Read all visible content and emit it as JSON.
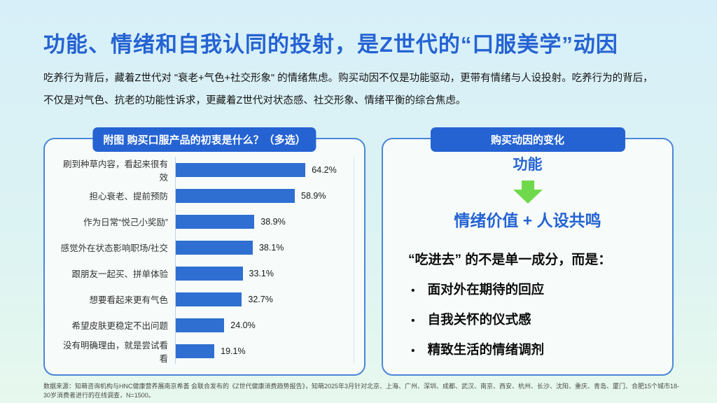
{
  "page": {
    "title": "功能、情绪和自我认同的投射，是Z世代的“口服美学”动因",
    "intro": "吃养行为背后，藏着Z世代对 \"衰老+气色+社交形象\" 的情绪焦虑。购买动因不仅是功能驱动，更带有情绪与人设投射。吃养行为的背后，不仅是对气色、抗老的功能性诉求，更藏着Z世代对状态感、社交形象、情绪平衡的综合焦虑。",
    "footnote": "数据来源：知萌咨询机构与HNC健康营养展南京希荟 会联合发布的《Z世代健康消费趋势报告》，知萌2025年3月针对北京、上海、广州、深圳、成都、武汉、南京、西安、杭州、长沙、沈阳、重庆、青岛、厦门、合肥15个城市18-30岁消费者进行的在线调查，N=1500。"
  },
  "chart_panel": {
    "header": "附图 购买口服产品的初衷是什么？（多选）"
  },
  "chart_data": {
    "type": "bar",
    "orientation": "horizontal",
    "title": "附图 购买口服产品的初衷是什么？（多选）",
    "categories": [
      "刷到种草内容，看起来很有效",
      "担心衰老、提前预防",
      "作为日常“悦己小奖励”",
      "感觉外在状态影响职场/社交",
      "跟朋友一起买、拼单体验",
      "想要看起来更有气色",
      "希望皮肤更稳定不出问题",
      "没有明确理由，就是尝试看看"
    ],
    "values": [
      64.2,
      58.9,
      38.9,
      38.1,
      33.1,
      32.7,
      24.0,
      19.1
    ],
    "value_labels": [
      "64.2%",
      "58.9%",
      "38.9%",
      "38.1%",
      "33.1%",
      "32.7%",
      "24.0%",
      "19.1%"
    ],
    "xlabel": "",
    "ylabel": "",
    "xlim": [
      0,
      88
    ],
    "grid": false,
    "legend": false
  },
  "insight_panel": {
    "header": "购买动因的变化",
    "from_label": "功能",
    "arrow_icon": "down-arrow",
    "to_label": "情绪价值 + 人设共鸣",
    "statement": "“吃进去” 的不是单一成分，而是：",
    "bullet_char": "•",
    "bullets": [
      "面对外在期待的回应",
      "自我关怀的仪式感",
      "精致生活的情绪调剂"
    ]
  },
  "colors": {
    "accent_blue": "#2563d3",
    "bar_blue": "#2e6fd1",
    "arrow_green": "#6fd94b",
    "panel_border": "#4a86d8",
    "background_top": "#d7eff8",
    "background_bottom": "#e7f8ee"
  }
}
